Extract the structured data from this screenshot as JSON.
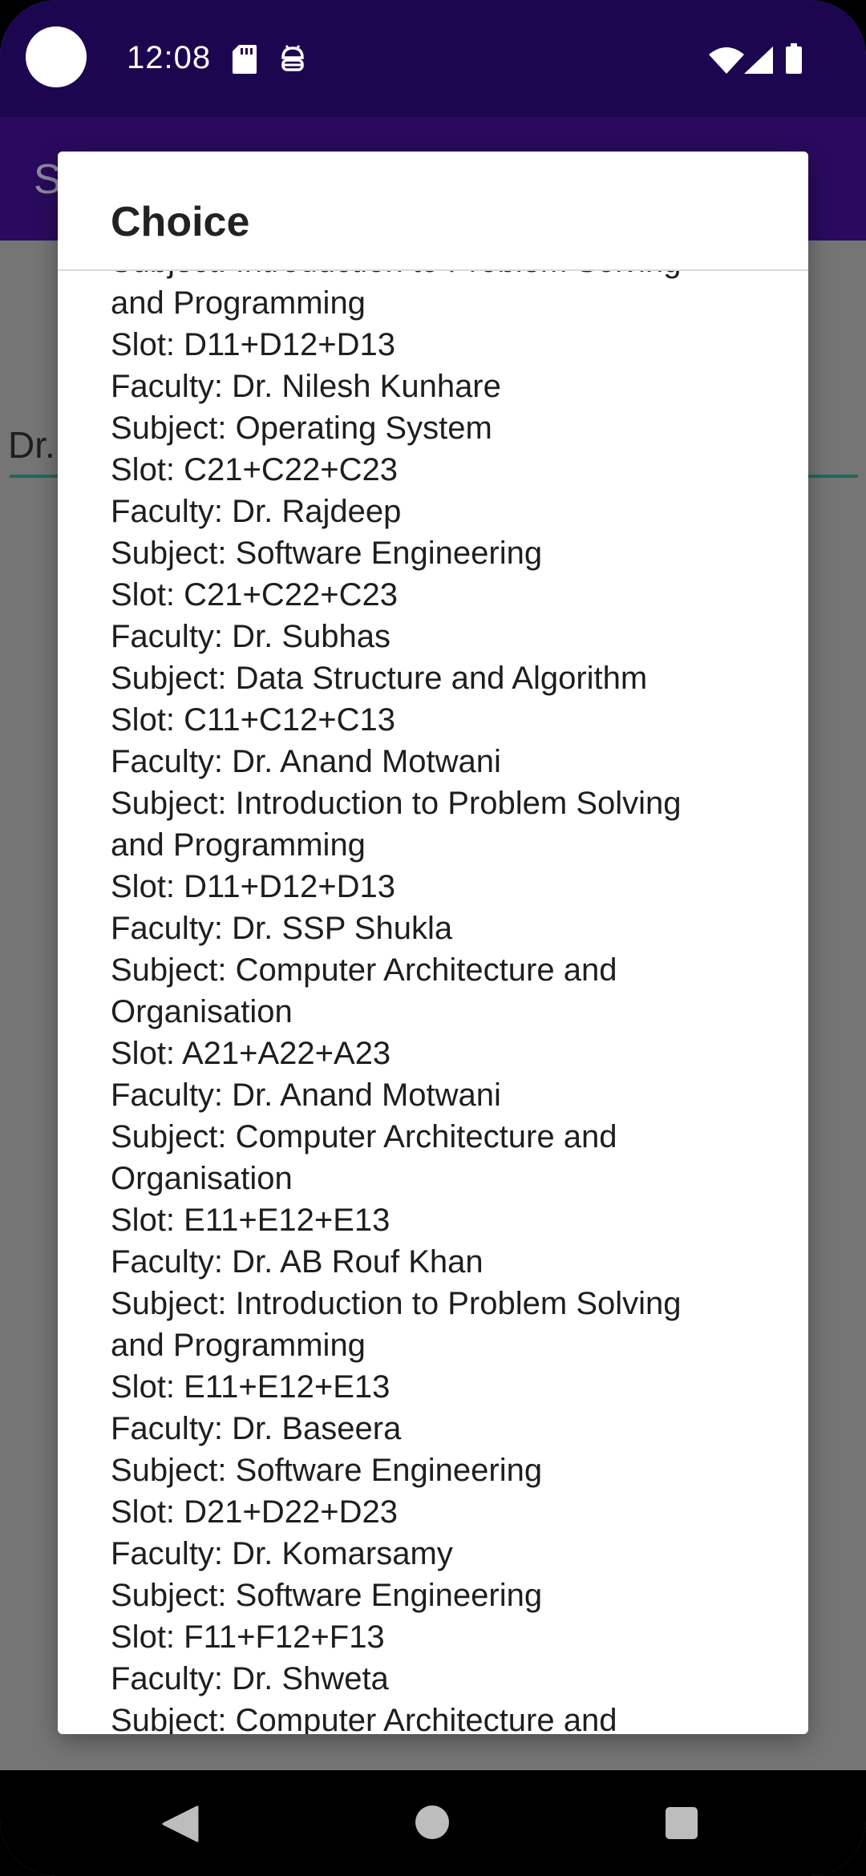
{
  "status_bar": {
    "time": "12:08"
  },
  "app": {
    "toolbar_title": "S",
    "field_text": "Dr."
  },
  "dialog": {
    "title": "Choice",
    "lines": [
      "Subject: Introduction to Problem Solving",
      "and Programming",
      "Slot: D11+D12+D13",
      "Faculty: Dr. Nilesh Kunhare",
      "Subject: Operating System",
      "Slot: C21+C22+C23",
      "Faculty: Dr. Rajdeep",
      "Subject: Software Engineering",
      "Slot: C21+C22+C23",
      "Faculty: Dr. Subhas",
      "Subject: Data Structure and Algorithm",
      "Slot: C11+C12+C13",
      "Faculty: Dr. Anand Motwani",
      "Subject: Introduction to Problem Solving",
      "and Programming",
      "Slot: D11+D12+D13",
      "Faculty: Dr. SSP Shukla",
      "Subject: Computer Architecture and",
      "Organisation",
      "Slot: A21+A22+A23",
      "Faculty: Dr. Anand Motwani",
      "Subject: Computer Architecture and",
      "Organisation",
      "Slot: E11+E12+E13",
      "Faculty: Dr. AB Rouf Khan",
      "Subject: Introduction to Problem Solving",
      "and Programming",
      "Slot: E11+E12+E13",
      "Faculty: Dr. Baseera",
      "Subject: Software Engineering",
      "Slot: D21+D22+D23",
      "Faculty: Dr. Komarsamy",
      "Subject: Software Engineering",
      "Slot: F11+F12+F13",
      "Faculty: Dr. Shweta",
      "Subject: Computer Architecture and"
    ]
  },
  "icons": {
    "sdcard": "sdcard-icon",
    "android": "android-debug-icon",
    "wifi": "wifi-icon",
    "signal": "signal-icon",
    "battery": "battery-icon",
    "back": "back-icon",
    "home": "home-icon",
    "recents": "recents-icon"
  }
}
